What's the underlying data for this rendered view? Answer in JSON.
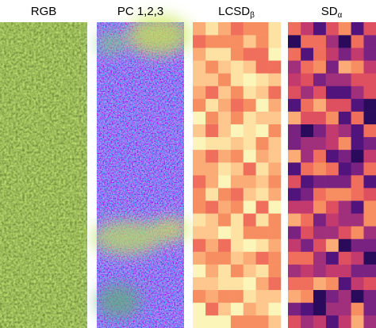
{
  "panels": [
    {
      "title": "RGB"
    },
    {
      "title": "PC 1,2,3"
    },
    {
      "title": "LCSD",
      "subscript": "β"
    },
    {
      "title": "SD",
      "subscript": "α"
    }
  ]
}
